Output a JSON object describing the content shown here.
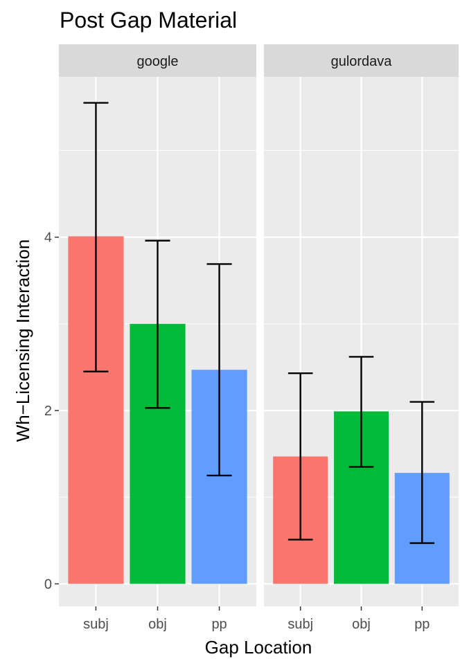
{
  "chart_data": {
    "type": "bar",
    "title": "Post Gap Material",
    "xlabel": "Gap Location",
    "ylabel": "Wh−Licensing Interaction",
    "categories": [
      "subj",
      "obj",
      "pp"
    ],
    "category_colors": [
      "#F8766D",
      "#00BA38",
      "#619CFF"
    ],
    "ylim": [
      -0.26,
      5.85
    ],
    "y_ticks": [
      0,
      2,
      4
    ],
    "y_tick_labels": [
      "0",
      "2",
      "4"
    ],
    "grid": true,
    "legend": "none",
    "facets": [
      {
        "name": "google",
        "values": [
          4.01,
          3.0,
          2.47
        ],
        "error_low": [
          2.45,
          2.03,
          1.25
        ],
        "error_high": [
          5.55,
          3.96,
          3.69
        ]
      },
      {
        "name": "gulordava",
        "values": [
          1.47,
          1.99,
          1.28
        ],
        "error_low": [
          0.51,
          1.35,
          0.47
        ],
        "error_high": [
          2.43,
          2.62,
          2.1
        ]
      }
    ]
  }
}
